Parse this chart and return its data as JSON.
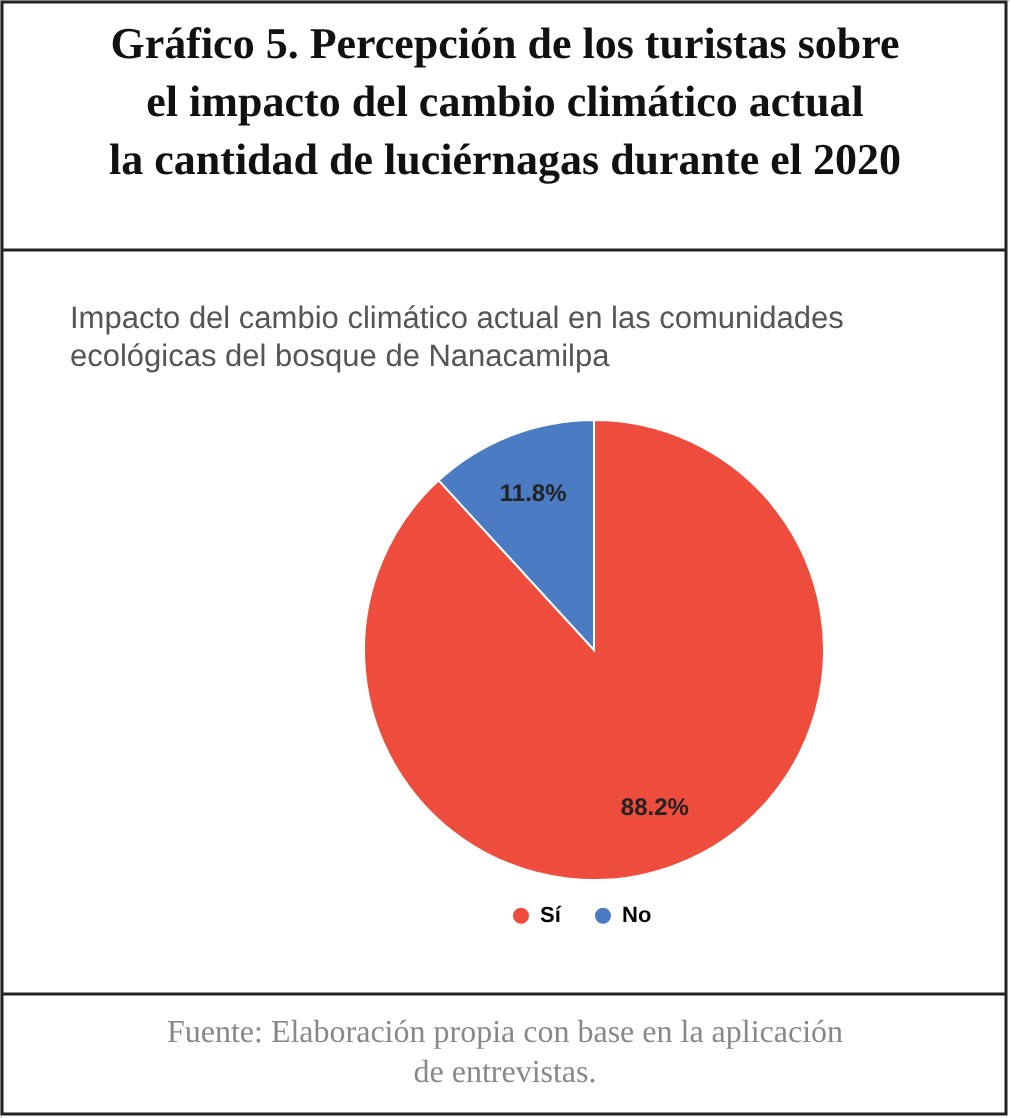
{
  "chart_data": {
    "type": "pie",
    "title": "Gráfico 5. Percepción de los turistas sobre\nel impacto del cambio climático actual\nla cantidad de luciérnagas durante el 2020",
    "subtitle": "Impacto del cambio climático actual en las comunidades\necológicas del bosque de Nanacamilpa",
    "categories": [
      "Sí",
      "No"
    ],
    "values": [
      88.2,
      11.8
    ],
    "colors": [
      "#ee4c3c",
      "#4a7bc3"
    ],
    "value_labels": [
      "88.2%",
      "11.8%"
    ],
    "legend": "bottom",
    "annotations": [
      "Fuente: Elaboración propia con base en la aplicación\nde entrevistas."
    ]
  }
}
